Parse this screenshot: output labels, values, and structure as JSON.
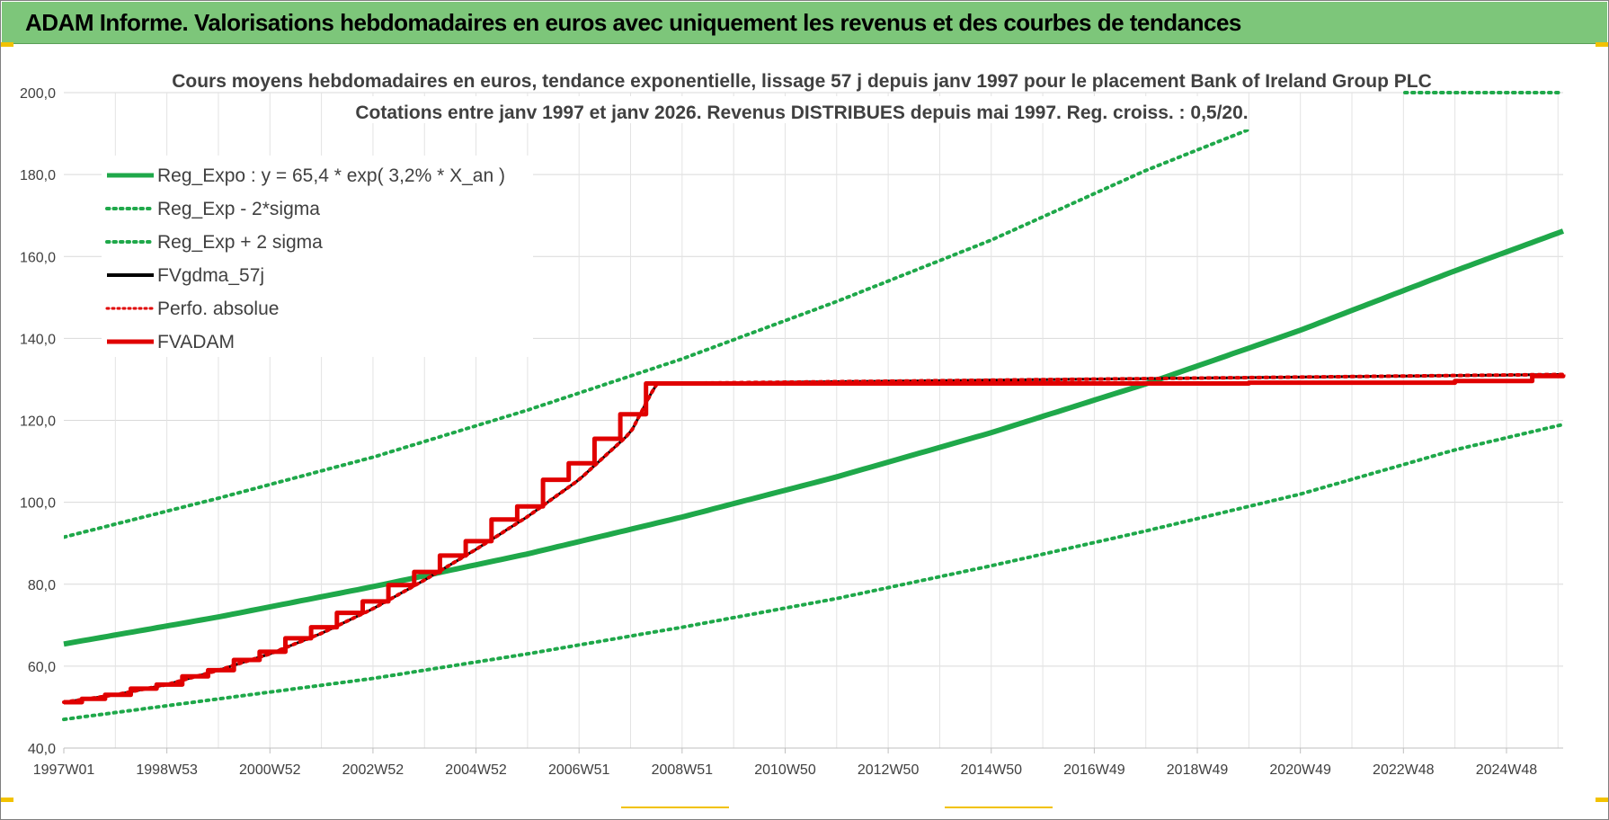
{
  "banner": {
    "title": "ADAM Informe. Valorisations hebdomadaires en euros avec uniquement les revenus et des courbes de tendances"
  },
  "chart_data": {
    "type": "line",
    "title": "Cours moyens hebdomadaires en euros, tendance exponentielle, lissage 57 j depuis janv 1997  pour le placement Bank of Ireland Group PLC",
    "subtitle": "Cotations entre janv 1997 et janv 2026. Revenus DISTRIBUES depuis mai 1997. Reg. croiss. : 0,5/20.",
    "xlabel": "",
    "ylabel": "",
    "x_range": [
      1997.0,
      2026.1
    ],
    "ylim": [
      40,
      200
    ],
    "yticks": [
      "40,0",
      "60,0",
      "80,0",
      "100,0",
      "120,0",
      "140,0",
      "160,0",
      "180,0",
      "200,0"
    ],
    "xticks": [
      {
        "label": "1997W01",
        "x": 1997.0
      },
      {
        "label": "1998W53",
        "x": 1999.0
      },
      {
        "label": "2000W52",
        "x": 2001.0
      },
      {
        "label": "2002W52",
        "x": 2003.0
      },
      {
        "label": "2004W52",
        "x": 2005.0
      },
      {
        "label": "2006W51",
        "x": 2007.0
      },
      {
        "label": "2008W51",
        "x": 2009.0
      },
      {
        "label": "2010W50",
        "x": 2011.0
      },
      {
        "label": "2012W50",
        "x": 2013.0
      },
      {
        "label": "2014W50",
        "x": 2015.0
      },
      {
        "label": "2016W49",
        "x": 2017.0
      },
      {
        "label": "2018W49",
        "x": 2019.0
      },
      {
        "label": "2020W49",
        "x": 2021.0
      },
      {
        "label": "2022W48",
        "x": 2023.0
      },
      {
        "label": "2024W48",
        "x": 2025.0
      }
    ],
    "grid": true,
    "legend_position": "top-left",
    "series": [
      {
        "name": "Reg_Expo : y = 65,4 * exp( 3,2% *  X_an )",
        "style": "solid",
        "color": "#1fa84a",
        "x": [
          1997.0,
          2000.0,
          2003.0,
          2006.0,
          2009.0,
          2012.0,
          2015.0,
          2018.0,
          2021.0,
          2024.0,
          2026.1
        ],
        "y": [
          65.4,
          72.0,
          79.4,
          87.4,
          96.4,
          106.2,
          117.0,
          128.9,
          142.0,
          156.5,
          166.2
        ]
      },
      {
        "name": "Reg_Exp - 2*sigma",
        "style": "dotted",
        "color": "#1fa84a",
        "x": [
          1997.0,
          2000.0,
          2003.0,
          2006.0,
          2009.0,
          2012.0,
          2015.0,
          2018.0,
          2021.0,
          2024.0,
          2026.1
        ],
        "y": [
          47.0,
          52.0,
          57.0,
          63.0,
          69.5,
          76.5,
          84.5,
          93.0,
          102.0,
          112.8,
          119.0
        ]
      },
      {
        "name": "Reg_Exp + 2 sigma",
        "style": "dotted",
        "color": "#1fa84a",
        "x": [
          1997.0,
          2000.0,
          2003.0,
          2006.0,
          2009.0,
          2012.0,
          2015.0,
          2018.0,
          2020.0
        ],
        "y": [
          91.5,
          101.0,
          111.0,
          122.5,
          135.0,
          149.0,
          164.0,
          181.0,
          191.0
        ]
      },
      {
        "name": "FVgdma_57j",
        "style": "solid",
        "color": "#000000",
        "x": [
          1997.0,
          1998.0,
          1999.0,
          2000.0,
          2001.0,
          2002.0,
          2003.0,
          2004.0,
          2005.0,
          2006.0,
          2007.0,
          2008.0,
          2008.5,
          2026.1
        ],
        "y": [
          51.2,
          53.0,
          55.5,
          59.0,
          63.0,
          68.0,
          74.0,
          81.0,
          88.5,
          96.5,
          105.5,
          117.0,
          129.0,
          131.2
        ]
      },
      {
        "name": "Perfo. absolue",
        "style": "dotted",
        "color": "#e00000",
        "x": [
          1997.0,
          1998.0,
          1999.0,
          2000.0,
          2001.0,
          2002.0,
          2003.0,
          2004.0,
          2005.0,
          2006.0,
          2007.0,
          2008.0,
          2008.5,
          2026.1
        ],
        "y": [
          51.2,
          53.0,
          55.5,
          59.0,
          63.0,
          68.0,
          74.0,
          81.0,
          88.5,
          96.5,
          105.5,
          117.0,
          129.0,
          131.2
        ]
      },
      {
        "name": "FVADAM",
        "style": "solid-step",
        "color": "#e00000",
        "x": [
          1997.0,
          1997.35,
          1997.8,
          1998.3,
          1998.8,
          1999.3,
          1999.8,
          2000.3,
          2000.8,
          2001.3,
          2001.8,
          2002.3,
          2002.8,
          2003.3,
          2003.8,
          2004.3,
          2004.8,
          2005.3,
          2005.8,
          2006.3,
          2006.8,
          2007.3,
          2007.8,
          2008.3,
          2010.0,
          2015.0,
          2020.0,
          2024.0,
          2025.5,
          2026.1
        ],
        "y": [
          51.2,
          52.0,
          53.0,
          54.5,
          55.5,
          57.5,
          59.0,
          61.5,
          63.5,
          66.8,
          69.5,
          73.0,
          75.8,
          79.8,
          83.0,
          87.0,
          90.5,
          95.8,
          99.0,
          105.5,
          109.5,
          115.5,
          121.5,
          129.0,
          129.0,
          129.0,
          129.2,
          129.6,
          130.8,
          131.2
        ]
      }
    ]
  }
}
